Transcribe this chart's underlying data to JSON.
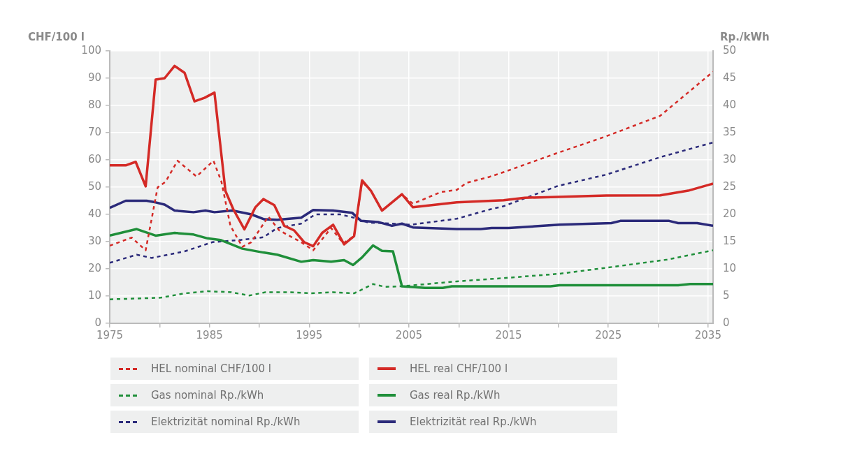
{
  "chart_data": {
    "type": "line",
    "xlabel": null,
    "ylabel": "CHF/100 l",
    "y2label": "Rp./kWh",
    "xlim": [
      1975,
      2035.5
    ],
    "xticks": [
      1975,
      {
        "value": 1980,
        "label": null
      },
      1985,
      {
        "value": 1990,
        "label": null
      },
      1995,
      {
        "value": 2000,
        "label": null
      },
      2005,
      {
        "value": 2010,
        "label": null
      },
      2015,
      {
        "value": 2020,
        "label": null
      },
      2025,
      {
        "value": 2030,
        "label": null
      },
      2035
    ],
    "ylim": [
      0,
      100
    ],
    "yticks": [
      0,
      10,
      20,
      30,
      40,
      50,
      60,
      70,
      80,
      90,
      100
    ],
    "y2lim": [
      0,
      50
    ],
    "y2ticks": [
      0,
      5,
      10,
      15,
      20,
      25,
      30,
      35,
      40,
      45,
      50
    ],
    "grid": true,
    "legend": "bottom",
    "marker": "none",
    "series": [
      {
        "name": "HEL nominal CHF/100 l",
        "color": "#d42a26",
        "line_style": "dashed",
        "x": [
          1975,
          1977.2,
          1978.6,
          1979.8,
          1980.6,
          1981.8,
          1983.7,
          1985.4,
          1986.2,
          1987.1,
          1988.3,
          1989.2,
          1990.9,
          1992,
          1994.2,
          1995.4,
          1997.2,
          1998.4,
          1999.5,
          2000.3,
          2001.2,
          2002.3,
          2004.3,
          2005.4,
          2008.2,
          2009.8,
          2010.8,
          2013.1,
          2014.5,
          2019.7,
          2024.8,
          2030.2,
          2035.5
        ],
        "values": [
          28.5,
          31.5,
          26.8,
          49.9,
          52,
          59.7,
          53.9,
          59.7,
          52,
          35.8,
          28.1,
          29.8,
          39.2,
          34.1,
          29.8,
          26.8,
          35,
          29.4,
          32,
          52,
          48.6,
          41.4,
          47.4,
          43.9,
          48.2,
          49,
          51.6,
          53.8,
          55.5,
          62.3,
          68.7,
          76.2,
          92.4
        ]
      },
      {
        "name": "HEL real CHF/100 l",
        "color": "#d42a26",
        "line_style": "solid",
        "x": [
          1975,
          1976.6,
          1977.6,
          1978.6,
          1979.6,
          1980.5,
          1981.5,
          1982.5,
          1983.5,
          1984.5,
          1985.5,
          1986.6,
          1987.4,
          1988.5,
          1989.6,
          1990.4,
          1991.5,
          1992.5,
          1993.5,
          1994.5,
          1995.4,
          1996.3,
          1997.4,
          1998.5,
          1999.5,
          2000.3,
          2001.2,
          2002.3,
          2004.3,
          2005.4,
          2009.8,
          2014.5,
          2016.6,
          2024.8,
          2030.2,
          2033,
          2035.5
        ],
        "values": [
          58,
          58,
          59.3,
          50.3,
          89.5,
          90,
          94.5,
          92,
          81.5,
          82.8,
          84.7,
          48.6,
          41.8,
          34.5,
          42.6,
          45.6,
          43.4,
          35.8,
          34.1,
          29.8,
          28.3,
          33.2,
          36.2,
          29,
          32,
          52.5,
          48.6,
          41.4,
          47.4,
          42.6,
          44.4,
          45.2,
          46.1,
          46.9,
          47,
          48.7,
          51.3
        ]
      },
      {
        "name": "Gas nominal Rp./kWh",
        "color": "#1f8f3a",
        "line_style": "dashed",
        "axis": "y2",
        "x": [
          1975,
          1980.1,
          1982.5,
          1984.8,
          1987.2,
          1989,
          1990.6,
          1993,
          1995.2,
          1997.4,
          1999.5,
          2001.4,
          2002.6,
          2004.3,
          2009.8,
          2014.5,
          2020.1,
          2024.8,
          2030.9,
          2035.5
        ],
        "values": [
          4.4,
          4.7,
          5.5,
          5.9,
          5.7,
          5.1,
          5.7,
          5.7,
          5.5,
          5.7,
          5.5,
          7.2,
          6.7,
          6.8,
          7.7,
          8.3,
          9.1,
          10.2,
          11.7,
          13.4
        ]
      },
      {
        "name": "Gas real Rp./kWh",
        "color": "#1f8f3a",
        "line_style": "solid",
        "axis": "y2",
        "x": [
          1975,
          1977.7,
          1979.6,
          1981.5,
          1983.4,
          1984.8,
          1986.1,
          1988.3,
          1990.4,
          1991.8,
          1994.2,
          1995.4,
          1997.2,
          1998.5,
          1999.4,
          2000.3,
          2001.4,
          2002.3,
          2003.4,
          2004.3,
          2006.6,
          2008.4,
          2009.3,
          2019.2,
          2020.1,
          2032,
          2033.2,
          2035.5
        ],
        "values": [
          16.1,
          17.3,
          16.1,
          16.6,
          16.3,
          15.6,
          15.3,
          13.7,
          13,
          12.6,
          11.3,
          11.6,
          11.3,
          11.6,
          10.7,
          12.1,
          14.3,
          13.3,
          13.2,
          6.8,
          6.5,
          6.5,
          6.8,
          6.8,
          7,
          7,
          7.2,
          7.2
        ]
      },
      {
        "name": "Elektrizität nominal Rp./kWh",
        "color": "#2b2a7a",
        "line_style": "dashed",
        "axis": "y2",
        "x": [
          1975,
          1977.7,
          1979.2,
          1982.5,
          1985.3,
          1988.1,
          1990.4,
          1991.8,
          1994.2,
          1995.6,
          1998.1,
          1999.7,
          2000.9,
          2003.3,
          2005.2,
          2009.8,
          2013.1,
          2014.5,
          2019.9,
          2024.8,
          2030.2,
          2035.5
        ],
        "values": [
          11.1,
          12.6,
          12,
          13.2,
          14.9,
          15.3,
          15.8,
          17.5,
          18.3,
          20,
          20,
          19.3,
          18.5,
          18.3,
          18.1,
          19.2,
          20.9,
          21.5,
          25.2,
          27.3,
          30.5,
          33.2
        ]
      },
      {
        "name": "Elektrizität real Rp./kWh",
        "color": "#2b2a7a",
        "line_style": "solid",
        "axis": "y2",
        "x": [
          1975,
          1976.6,
          1978.7,
          1979.6,
          1980.5,
          1981.5,
          1983.4,
          1984.6,
          1985.5,
          1987.3,
          1989.2,
          1990.5,
          1991.8,
          1994.2,
          1995.4,
          1997.4,
          1999.3,
          2000.2,
          2001.9,
          2003.3,
          2004.3,
          2005.4,
          2009.8,
          2012.2,
          2013.3,
          2015,
          2020.1,
          2025.3,
          2026.2,
          2031.1,
          2032,
          2033.9,
          2035.5
        ],
        "values": [
          21.2,
          22.5,
          22.5,
          22.2,
          21.8,
          20.7,
          20.4,
          20.7,
          20.4,
          20.7,
          20,
          19.1,
          19,
          19.4,
          20.8,
          20.7,
          20.3,
          18.8,
          18.6,
          17.9,
          18.3,
          17.6,
          17.3,
          17.3,
          17.5,
          17.5,
          18.1,
          18.4,
          18.8,
          18.8,
          18.4,
          18.4,
          17.9
        ]
      }
    ]
  }
}
